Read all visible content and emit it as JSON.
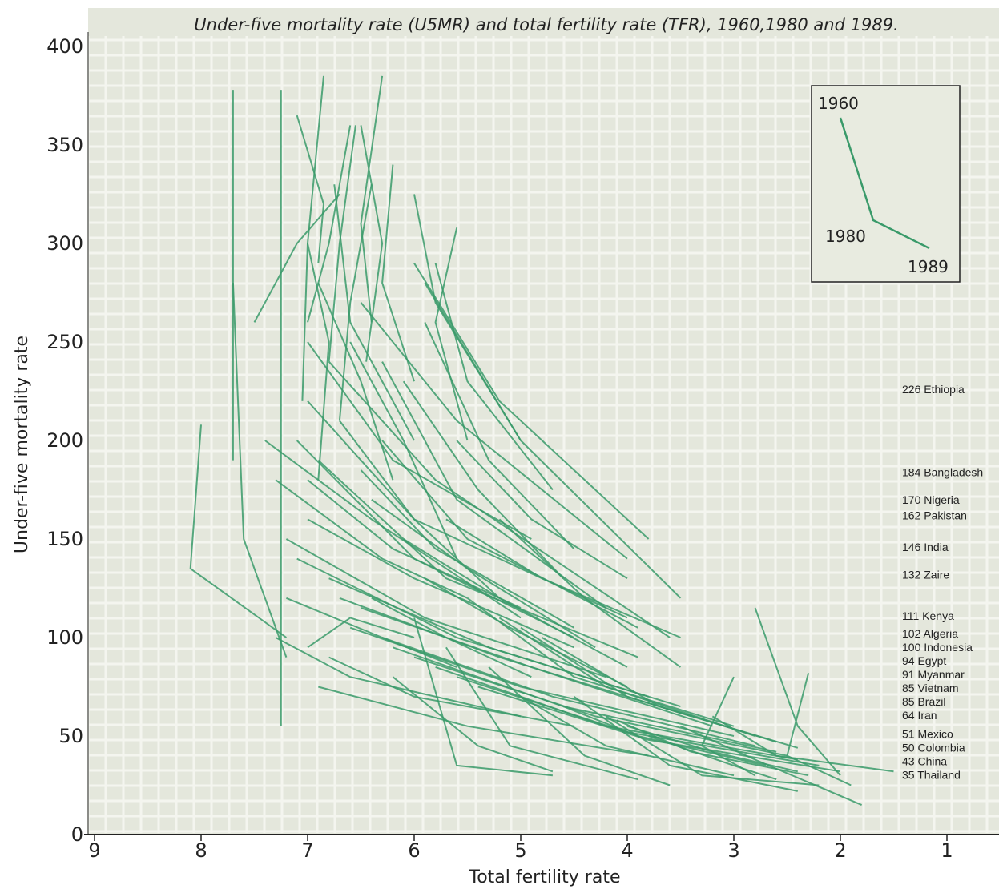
{
  "chart_data": {
    "type": "line",
    "title": "Under-five mortality rate (U5MR) and total fertility rate (TFR), 1960,1980 and 1989.",
    "xlabel": "Total fertility rate",
    "ylabel": "Under-five mortality rate",
    "x_ticks": [
      "9",
      "8",
      "7",
      "6",
      "5",
      "4",
      "3",
      "2",
      "1"
    ],
    "y_ticks": [
      "0",
      "50",
      "100",
      "150",
      "200",
      "250",
      "300",
      "350",
      "400"
    ],
    "xlim": [
      9,
      0.5
    ],
    "ylim": [
      0,
      400
    ],
    "x_reversed": true,
    "grid": true,
    "line_color": "#3a9a6a",
    "background_color": "#e4e7dc",
    "inset": {
      "labels": [
        "1960",
        "1980",
        "1989"
      ],
      "position": "top-right"
    },
    "country_labels": [
      {
        "text": "226 Ethiopia",
        "value": 226
      },
      {
        "text": "184 Bangladesh",
        "value": 184
      },
      {
        "text": "170 Nigeria",
        "value": 170
      },
      {
        "text": "162 Pakistan",
        "value": 162
      },
      {
        "text": "146 India",
        "value": 146
      },
      {
        "text": "132 Zaire",
        "value": 132
      },
      {
        "text": "111 Kenya",
        "value": 111
      },
      {
        "text": "102 Algeria",
        "value": 102
      },
      {
        "text": "100 Indonesia",
        "value": 100
      },
      {
        "text": "94 Egypt",
        "value": 94
      },
      {
        "text": "91 Myanmar",
        "value": 91
      },
      {
        "text": "85 Vietnam",
        "value": 85
      },
      {
        "text": "85 Brazil",
        "value": 85
      },
      {
        "text": "64 Iran",
        "value": 64
      },
      {
        "text": "51 Mexico",
        "value": 51
      },
      {
        "text": "50 Colombia",
        "value": 50
      },
      {
        "text": "43 China",
        "value": 43
      },
      {
        "text": "35 Thailand",
        "value": 35
      }
    ],
    "series": [
      {
        "points": [
          [
            7.7,
            378
          ],
          [
            7.7,
            190
          ]
        ]
      },
      {
        "points": [
          [
            7.7,
            280
          ],
          [
            7.6,
            150
          ],
          [
            7.2,
            90
          ]
        ]
      },
      {
        "points": [
          [
            7.25,
            378
          ],
          [
            7.25,
            55
          ]
        ]
      },
      {
        "points": [
          [
            7.1,
            365
          ],
          [
            6.85,
            320
          ],
          [
            6.9,
            290
          ]
        ]
      },
      {
        "points": [
          [
            6.85,
            385
          ],
          [
            7.0,
            300
          ],
          [
            7.05,
            220
          ]
        ]
      },
      {
        "points": [
          [
            6.55,
            360
          ],
          [
            6.7,
            300
          ],
          [
            6.8,
            240
          ]
        ]
      },
      {
        "points": [
          [
            6.3,
            385
          ],
          [
            6.5,
            310
          ],
          [
            6.4,
            260
          ]
        ]
      },
      {
        "points": [
          [
            6.5,
            360
          ],
          [
            6.3,
            300
          ],
          [
            6.45,
            240
          ]
        ]
      },
      {
        "points": [
          [
            6.6,
            360
          ],
          [
            6.8,
            300
          ],
          [
            7.0,
            260
          ]
        ]
      },
      {
        "points": [
          [
            6.2,
            340
          ],
          [
            6.3,
            280
          ],
          [
            6.0,
            230
          ]
        ]
      },
      {
        "points": [
          [
            6.0,
            325
          ],
          [
            5.8,
            270
          ],
          [
            5.0,
            200
          ]
        ]
      },
      {
        "points": [
          [
            5.6,
            308
          ],
          [
            5.8,
            260
          ],
          [
            5.5,
            200
          ]
        ]
      },
      {
        "points": [
          [
            7.5,
            260
          ],
          [
            7.1,
            300
          ],
          [
            6.7,
            325
          ]
        ]
      },
      {
        "points": [
          [
            8.0,
            208
          ],
          [
            8.1,
            135
          ],
          [
            7.2,
            100
          ]
        ]
      },
      {
        "points": [
          [
            7.3,
            180
          ],
          [
            6.3,
            140
          ],
          [
            5.5,
            120
          ]
        ]
      },
      {
        "points": [
          [
            7.4,
            200
          ],
          [
            6.4,
            160
          ],
          [
            5.0,
            110
          ]
        ]
      },
      {
        "points": [
          [
            7.0,
            250
          ],
          [
            6.2,
            190
          ],
          [
            4.9,
            150
          ]
        ]
      },
      {
        "points": [
          [
            6.5,
            270
          ],
          [
            5.6,
            210
          ],
          [
            4.0,
            140
          ]
        ]
      },
      {
        "points": [
          [
            6.0,
            290
          ],
          [
            5.2,
            220
          ],
          [
            3.8,
            150
          ]
        ]
      },
      {
        "points": [
          [
            5.9,
            280
          ],
          [
            5.0,
            200
          ],
          [
            3.5,
            120
          ]
        ]
      },
      {
        "points": [
          [
            6.8,
            240
          ],
          [
            5.8,
            180
          ],
          [
            3.6,
            100
          ]
        ]
      },
      {
        "points": [
          [
            7.0,
            220
          ],
          [
            6.0,
            160
          ],
          [
            4.0,
            110
          ]
        ]
      },
      {
        "points": [
          [
            7.1,
            200
          ],
          [
            6.0,
            140
          ],
          [
            4.5,
            100
          ]
        ]
      },
      {
        "points": [
          [
            6.9,
            190
          ],
          [
            5.7,
            130
          ],
          [
            3.9,
            90
          ]
        ]
      },
      {
        "points": [
          [
            7.0,
            160
          ],
          [
            6.0,
            130
          ],
          [
            4.5,
            95
          ]
        ]
      },
      {
        "points": [
          [
            7.2,
            150
          ],
          [
            5.9,
            110
          ],
          [
            4.2,
            80
          ]
        ]
      },
      {
        "points": [
          [
            7.1,
            140
          ],
          [
            5.6,
            100
          ],
          [
            3.8,
            70
          ]
        ]
      },
      {
        "points": [
          [
            6.8,
            130
          ],
          [
            5.3,
            95
          ],
          [
            3.5,
            65
          ]
        ]
      },
      {
        "points": [
          [
            6.7,
            120
          ],
          [
            5.2,
            90
          ],
          [
            3.4,
            60
          ]
        ]
      },
      {
        "points": [
          [
            6.5,
            115
          ],
          [
            4.9,
            85
          ],
          [
            3.2,
            55
          ]
        ]
      },
      {
        "points": [
          [
            6.6,
            105
          ],
          [
            5.0,
            75
          ],
          [
            3.0,
            50
          ]
        ]
      },
      {
        "points": [
          [
            6.3,
            100
          ],
          [
            4.7,
            70
          ],
          [
            2.8,
            45
          ]
        ]
      },
      {
        "points": [
          [
            6.2,
            95
          ],
          [
            4.6,
            65
          ],
          [
            2.6,
            42
          ]
        ]
      },
      {
        "points": [
          [
            6.0,
            90
          ],
          [
            4.3,
            60
          ],
          [
            2.5,
            40
          ]
        ]
      },
      {
        "points": [
          [
            5.8,
            85
          ],
          [
            4.2,
            55
          ],
          [
            2.4,
            38
          ]
        ]
      },
      {
        "points": [
          [
            5.6,
            80
          ],
          [
            4.0,
            52
          ],
          [
            2.2,
            35
          ]
        ]
      },
      {
        "points": [
          [
            5.4,
            75
          ],
          [
            3.8,
            48
          ],
          [
            2.0,
            32
          ]
        ]
      },
      {
        "points": [
          [
            5.5,
            120
          ],
          [
            4.5,
            80
          ],
          [
            3.0,
            55
          ]
        ]
      },
      {
        "points": [
          [
            5.2,
            110
          ],
          [
            4.2,
            75
          ],
          [
            2.8,
            50
          ]
        ]
      },
      {
        "points": [
          [
            5.0,
            105
          ],
          [
            4.0,
            70
          ],
          [
            2.6,
            47
          ]
        ]
      },
      {
        "points": [
          [
            4.8,
            100
          ],
          [
            3.7,
            65
          ],
          [
            2.4,
            44
          ]
        ]
      },
      {
        "points": [
          [
            6.1,
            150
          ],
          [
            5.2,
            120
          ],
          [
            4.0,
            85
          ]
        ]
      },
      {
        "points": [
          [
            6.4,
            170
          ],
          [
            5.5,
            135
          ],
          [
            4.3,
            95
          ]
        ]
      },
      {
        "points": [
          [
            5.7,
            160
          ],
          [
            4.8,
            130
          ],
          [
            3.5,
            100
          ]
        ]
      },
      {
        "points": [
          [
            6.6,
            250
          ],
          [
            6.1,
            200
          ],
          [
            5.6,
            140
          ]
        ]
      },
      {
        "points": [
          [
            6.9,
            280
          ],
          [
            6.5,
            230
          ],
          [
            6.2,
            180
          ]
        ]
      },
      {
        "points": [
          [
            6.4,
            330
          ],
          [
            6.6,
            270
          ],
          [
            6.7,
            210
          ]
        ]
      },
      {
        "points": [
          [
            7.0,
            300
          ],
          [
            6.8,
            250
          ],
          [
            6.9,
            180
          ]
        ]
      },
      {
        "points": [
          [
            6.75,
            330
          ],
          [
            6.6,
            260
          ],
          [
            6.0,
            200
          ]
        ]
      },
      {
        "points": [
          [
            5.8,
            290
          ],
          [
            5.5,
            230
          ],
          [
            4.7,
            175
          ]
        ]
      },
      {
        "points": [
          [
            5.9,
            260
          ],
          [
            5.3,
            190
          ],
          [
            4.5,
            145
          ]
        ]
      },
      {
        "points": [
          [
            6.3,
            240
          ],
          [
            5.6,
            170
          ],
          [
            4.2,
            115
          ]
        ]
      },
      {
        "points": [
          [
            6.3,
            200
          ],
          [
            5.5,
            150
          ],
          [
            3.9,
            105
          ]
        ]
      },
      {
        "points": [
          [
            7.0,
            180
          ],
          [
            6.2,
            145
          ],
          [
            5.0,
            115
          ]
        ]
      },
      {
        "points": [
          [
            6.5,
            185
          ],
          [
            5.8,
            145
          ],
          [
            4.5,
            105
          ]
        ]
      },
      {
        "points": [
          [
            5.6,
            200
          ],
          [
            4.9,
            160
          ],
          [
            4.0,
            130
          ]
        ]
      },
      {
        "points": [
          [
            7.3,
            100
          ],
          [
            6.6,
            80
          ],
          [
            5.0,
            60
          ]
        ]
      },
      {
        "points": [
          [
            6.8,
            90
          ],
          [
            6.0,
            70
          ],
          [
            4.5,
            55
          ]
        ]
      },
      {
        "points": [
          [
            6.9,
            75
          ],
          [
            5.5,
            55
          ],
          [
            3.8,
            40
          ]
        ]
      },
      {
        "points": [
          [
            6.2,
            80
          ],
          [
            5.4,
            45
          ],
          [
            4.7,
            32
          ]
        ]
      },
      {
        "points": [
          [
            6.0,
            110
          ],
          [
            5.6,
            35
          ],
          [
            4.7,
            30
          ]
        ]
      },
      {
        "points": [
          [
            5.7,
            95
          ],
          [
            5.1,
            45
          ],
          [
            3.9,
            28
          ]
        ]
      },
      {
        "points": [
          [
            5.3,
            85
          ],
          [
            4.4,
            40
          ],
          [
            3.6,
            25
          ]
        ]
      },
      {
        "points": [
          [
            4.5,
            70
          ],
          [
            3.6,
            35
          ],
          [
            2.4,
            22
          ]
        ]
      },
      {
        "points": [
          [
            4.2,
            60
          ],
          [
            3.3,
            30
          ],
          [
            2.2,
            25
          ]
        ]
      },
      {
        "points": [
          [
            3.0,
            80
          ],
          [
            3.3,
            45
          ],
          [
            2.8,
            30
          ]
        ]
      },
      {
        "points": [
          [
            2.8,
            115
          ],
          [
            2.4,
            55
          ],
          [
            2.0,
            30
          ]
        ]
      },
      {
        "points": [
          [
            2.3,
            82
          ],
          [
            2.5,
            40
          ],
          [
            1.9,
            25
          ]
        ]
      },
      {
        "points": [
          [
            3.2,
            60
          ],
          [
            2.6,
            40
          ],
          [
            1.5,
            32
          ]
        ]
      },
      {
        "points": [
          [
            3.5,
            55
          ],
          [
            2.8,
            38
          ],
          [
            1.8,
            15
          ]
        ]
      },
      {
        "points": [
          [
            4.0,
            55
          ],
          [
            3.2,
            42
          ],
          [
            2.4,
            32
          ]
        ]
      },
      {
        "points": [
          [
            5.0,
            70
          ],
          [
            4.2,
            45
          ],
          [
            3.0,
            30
          ]
        ]
      },
      {
        "points": [
          [
            4.6,
            65
          ],
          [
            3.9,
            50
          ],
          [
            2.7,
            35
          ]
        ]
      },
      {
        "points": [
          [
            4.1,
            58
          ],
          [
            3.4,
            42
          ],
          [
            2.3,
            30
          ]
        ]
      },
      {
        "points": [
          [
            3.8,
            50
          ],
          [
            3.0,
            35
          ],
          [
            2.6,
            28
          ]
        ]
      },
      {
        "points": [
          [
            5.2,
            160
          ],
          [
            4.4,
            120
          ],
          [
            3.5,
            85
          ]
        ]
      },
      {
        "points": [
          [
            6.7,
            210
          ],
          [
            6.0,
            160
          ],
          [
            5.2,
            120
          ]
        ]
      },
      {
        "points": [
          [
            6.1,
            230
          ],
          [
            5.4,
            175
          ],
          [
            4.6,
            130
          ]
        ]
      },
      {
        "points": [
          [
            7.2,
            120
          ],
          [
            6.3,
            100
          ],
          [
            5.6,
            85
          ]
        ]
      },
      {
        "points": [
          [
            7.0,
            95
          ],
          [
            6.6,
            110
          ],
          [
            6.0,
            100
          ]
        ]
      },
      {
        "points": [
          [
            6.4,
            120
          ],
          [
            5.7,
            100
          ],
          [
            4.9,
            80
          ]
        ]
      },
      {
        "points": [
          [
            5.9,
            130
          ],
          [
            5.1,
            105
          ],
          [
            4.0,
            75
          ]
        ]
      }
    ]
  }
}
